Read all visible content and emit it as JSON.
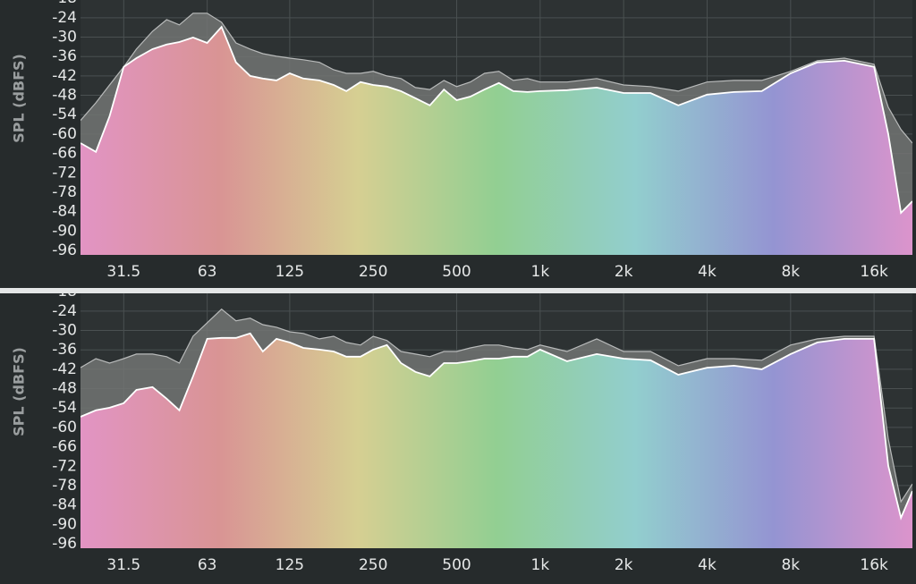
{
  "chart_data": [
    {
      "type": "area",
      "y_label": "SPL (dBFS)",
      "log_x": true,
      "grid": true,
      "xlim": [
        22,
        22000
      ],
      "ylim": [
        -97.4,
        -18.5
      ],
      "xticks": [
        31.5,
        63,
        125,
        250,
        500,
        {
          "value": 1000,
          "label": "1k"
        },
        {
          "value": 2000,
          "label": "2k"
        },
        {
          "value": 4000,
          "label": "4k"
        },
        {
          "value": 8000,
          "label": "8k"
        },
        {
          "value": 16000,
          "label": "16k"
        }
      ],
      "yticks": [
        -18,
        -24,
        -30,
        -36,
        -42,
        -48,
        -54,
        -60,
        -66,
        -72,
        -78,
        -84,
        -90,
        -96
      ],
      "x": [
        22,
        25,
        28,
        31.5,
        35,
        40,
        45,
        50,
        56,
        63,
        71,
        80,
        90,
        100,
        112,
        125,
        140,
        160,
        180,
        200,
        225,
        250,
        280,
        315,
        355,
        400,
        450,
        500,
        560,
        630,
        710,
        800,
        900,
        1000,
        1250,
        1600,
        2000,
        2500,
        3150,
        4000,
        5000,
        6300,
        8000,
        10000,
        12500,
        16000,
        18000,
        20000,
        22000
      ],
      "series": [
        {
          "color": "#727473",
          "values": [
            -55.8,
            -50.3,
            -44.8,
            -39.2,
            -33.7,
            -28.2,
            -24.6,
            -26.2,
            -22.6,
            -22.6,
            -25.4,
            -31.8,
            -33.7,
            -35.1,
            -35.9,
            -36.5,
            -37,
            -37.8,
            -40.1,
            -41.2,
            -41.2,
            -40.6,
            -42,
            -42.8,
            -45.6,
            -46.2,
            -43.4,
            -45.3,
            -43.9,
            -41.2,
            -40.6,
            -43.4,
            -42.8,
            -43.9,
            -43.9,
            -42.8,
            -44.8,
            -45.3,
            -46.7,
            -43.9,
            -43.4,
            -43.4,
            -40.6,
            -37.3,
            -36.5,
            -38.4,
            -51.7,
            -58.6,
            -62.8
          ]
        },
        {
          "colors": [
            "#e294c4",
            "#d99494",
            "#d6cf92",
            "#92cf92",
            "#92cece",
            "#9494d2",
            "#dc94cc"
          ],
          "values": [
            -62.8,
            -65.5,
            -54.5,
            -39.2,
            -36.5,
            -33.7,
            -32.3,
            -31.5,
            -30.1,
            -31.8,
            -26.8,
            -37.8,
            -42,
            -42.8,
            -43.4,
            -41.2,
            -42.8,
            -43.4,
            -44.8,
            -46.7,
            -43.9,
            -44.8,
            -45.3,
            -46.7,
            -48.9,
            -51.1,
            -46.2,
            -49.5,
            -48.4,
            -46.2,
            -44.2,
            -46.7,
            -47,
            -46.7,
            -46.4,
            -45.6,
            -47.3,
            -47.3,
            -51.1,
            -47.8,
            -47,
            -46.7,
            -41.2,
            -37.8,
            -37.3,
            -39.2,
            -60,
            -84.4,
            -80.8
          ]
        }
      ]
    },
    {
      "type": "area",
      "y_label": "SPL (dBFS)",
      "log_x": true,
      "grid": true,
      "xlim": [
        22,
        22000
      ],
      "ylim": [
        -97.4,
        -18.5
      ],
      "xticks": [
        31.5,
        63,
        125,
        250,
        500,
        {
          "value": 1000,
          "label": "1k"
        },
        {
          "value": 2000,
          "label": "2k"
        },
        {
          "value": 4000,
          "label": "4k"
        },
        {
          "value": 8000,
          "label": "8k"
        },
        {
          "value": 16000,
          "label": "16k"
        }
      ],
      "yticks": [
        -18,
        -24,
        -30,
        -36,
        -42,
        -48,
        -54,
        -60,
        -66,
        -72,
        -78,
        -84,
        -90,
        -96
      ],
      "x": [
        22,
        25,
        28,
        31.5,
        35,
        40,
        45,
        50,
        56,
        63,
        71,
        80,
        90,
        100,
        112,
        125,
        140,
        160,
        180,
        200,
        225,
        250,
        280,
        315,
        355,
        400,
        450,
        500,
        560,
        630,
        710,
        800,
        900,
        1000,
        1250,
        1600,
        2000,
        2500,
        3150,
        4000,
        5000,
        6300,
        8000,
        10000,
        12500,
        16000,
        18000,
        20000,
        22000
      ],
      "series": [
        {
          "color": "#727473",
          "values": [
            -41.5,
            -38.7,
            -40.1,
            -38.7,
            -37.3,
            -37.3,
            -38.1,
            -40.1,
            -31.8,
            -27.6,
            -23.4,
            -27,
            -26.2,
            -28.2,
            -29,
            -30.4,
            -30.9,
            -32.6,
            -31.8,
            -33.7,
            -34.5,
            -31.8,
            -33.1,
            -36.5,
            -37.3,
            -38.1,
            -36.5,
            -36.5,
            -35.4,
            -34.5,
            -34.5,
            -35.4,
            -35.9,
            -34.5,
            -36.5,
            -32.6,
            -36.5,
            -36.5,
            -40.9,
            -38.7,
            -38.7,
            -39.2,
            -34.5,
            -32.6,
            -31.8,
            -31.8,
            -63.6,
            -83,
            -77.5
          ]
        },
        {
          "colors": [
            "#e294c4",
            "#d99494",
            "#d6cf92",
            "#92cf92",
            "#92cece",
            "#9494d2",
            "#dc94cc"
          ],
          "values": [
            -56.7,
            -54.7,
            -53.9,
            -52.5,
            -48.4,
            -47.5,
            -51.1,
            -54.7,
            -44.2,
            -32.6,
            -32.3,
            -32.3,
            -30.9,
            -36.5,
            -32.6,
            -33.7,
            -35.4,
            -35.9,
            -36.5,
            -38.1,
            -38.1,
            -35.9,
            -34.5,
            -40.1,
            -42.8,
            -44.2,
            -40.1,
            -40.1,
            -39.5,
            -38.7,
            -38.7,
            -38.1,
            -38.1,
            -35.9,
            -39.5,
            -37.3,
            -38.7,
            -39.2,
            -43.7,
            -41.5,
            -40.9,
            -42,
            -37.3,
            -33.7,
            -32.6,
            -32.6,
            -71.9,
            -88,
            -79.7
          ]
        }
      ]
    }
  ]
}
